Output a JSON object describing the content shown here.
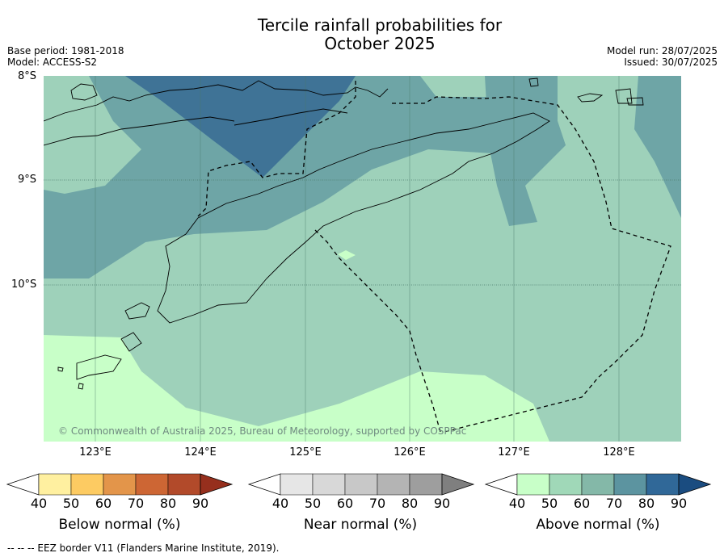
{
  "title_line1": "Tercile rainfall probabilities for",
  "title_line2": "October 2025",
  "meta": {
    "base_period": "Base period: 1981-2018",
    "model": "Model: ACCESS-S2",
    "model_run": "Model run: 28/07/2025",
    "issued": "Issued: 30/07/2025"
  },
  "map": {
    "lat_labels": [
      "8°S",
      "9°S",
      "10°S"
    ],
    "lon_labels": [
      "123°E",
      "124°E",
      "125°E",
      "126°E",
      "127°E",
      "128°E"
    ],
    "copyright": "© Commonwealth of Australia 2025, Bureau of Meteorology, supported by COSPPac"
  },
  "colorbars": [
    {
      "label": "Below normal (%)",
      "ticks": [
        "40",
        "50",
        "60",
        "70",
        "80",
        "90"
      ],
      "colors": [
        "#ffffff",
        "#fff0a0",
        "#fdcb62",
        "#e3954a",
        "#cd6634",
        "#b24a2a",
        "#962f1d"
      ]
    },
    {
      "label": "Near normal (%)",
      "ticks": [
        "40",
        "50",
        "60",
        "70",
        "80",
        "90"
      ],
      "colors": [
        "#ffffff",
        "#e6e6e6",
        "#d8d8d8",
        "#c8c8c8",
        "#b4b4b4",
        "#9e9e9e",
        "#7f7f7f"
      ]
    },
    {
      "label": "Above normal (%)",
      "ticks": [
        "40",
        "50",
        "60",
        "70",
        "80",
        "90"
      ],
      "colors": [
        "#ffffff",
        "#c8ffc8",
        "#a0d8b8",
        "#84b8a8",
        "#5c94a0",
        "#306898",
        "#1a4c80"
      ]
    }
  ],
  "footer": "--  --  -- EEZ border V11 (Flanders Marine Institute, 2019)."
}
